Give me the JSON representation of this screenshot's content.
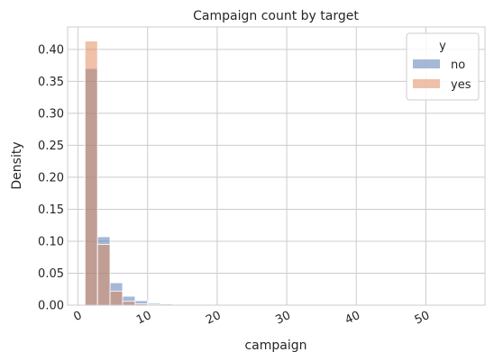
{
  "chart_data": {
    "type": "bar",
    "title": "Campaign count by target",
    "xlabel": "campaign",
    "ylabel": "Density",
    "xlim": [
      -1.5,
      58.5
    ],
    "ylim": [
      0,
      0.435
    ],
    "xticks": [
      "0",
      "10",
      "20",
      "30",
      "40",
      "50"
    ],
    "xtick_values": [
      0,
      10,
      20,
      30,
      40,
      50
    ],
    "yticks": [
      "0.00",
      "0.05",
      "0.10",
      "0.15",
      "0.20",
      "0.25",
      "0.30",
      "0.35",
      "0.40"
    ],
    "ytick_values": [
      0,
      0.05,
      0.1,
      0.15,
      0.2,
      0.25,
      0.3,
      0.35,
      0.4
    ],
    "grid": true,
    "legend_title": "y",
    "legend_position": "top-right",
    "bin_edges": [
      1,
      2.8,
      4.6,
      6.4,
      8.2,
      10.0,
      11.8,
      13.6,
      15.4,
      17.2,
      19.0
    ],
    "series": [
      {
        "name": "no",
        "color": "#4c72b0",
        "values": [
          0.37,
          0.107,
          0.035,
          0.014,
          0.007,
          0.003,
          0.002,
          0.001,
          0.001,
          0.0005
        ]
      },
      {
        "name": "yes",
        "color": "#dd8452",
        "values": [
          0.413,
          0.095,
          0.022,
          0.006,
          0.002,
          0.001,
          0.0005,
          0.0,
          0.0,
          0.0
        ]
      }
    ]
  }
}
